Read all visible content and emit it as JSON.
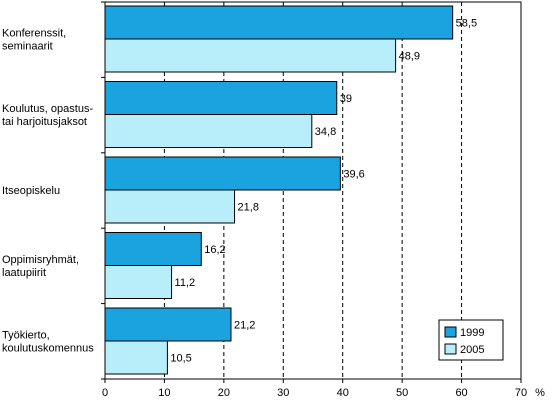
{
  "chart_data": {
    "type": "bar",
    "orientation": "horizontal",
    "categories": [
      [
        "Konferenssit,",
        "seminaarit"
      ],
      [
        "Koulutus, opastus-",
        "tai harjoitusjaksot"
      ],
      [
        "Itseopiskelu"
      ],
      [
        "Oppimisryhmät,",
        "laatupiirit"
      ],
      [
        "Työkierto,",
        "koulutuskomennus"
      ]
    ],
    "series": [
      {
        "name": "1999",
        "values": [
          58.5,
          39,
          39.6,
          16.2,
          21.2
        ],
        "labels": [
          "58,5",
          "39",
          "39,6",
          "16,2",
          "21,2"
        ],
        "color": "#1BA3E0"
      },
      {
        "name": "2005",
        "values": [
          48.9,
          34.8,
          21.8,
          11.2,
          10.5
        ],
        "labels": [
          "48,9",
          "34,8",
          "21,8",
          "11,2",
          "10,5"
        ],
        "color": "#B8EEFA"
      }
    ],
    "xlim": [
      0,
      70
    ],
    "xticks": [
      0,
      10,
      20,
      30,
      40,
      50,
      60,
      70
    ],
    "xunit": "%",
    "grid": "vertical dashed",
    "legend_position": "bottom-right"
  }
}
